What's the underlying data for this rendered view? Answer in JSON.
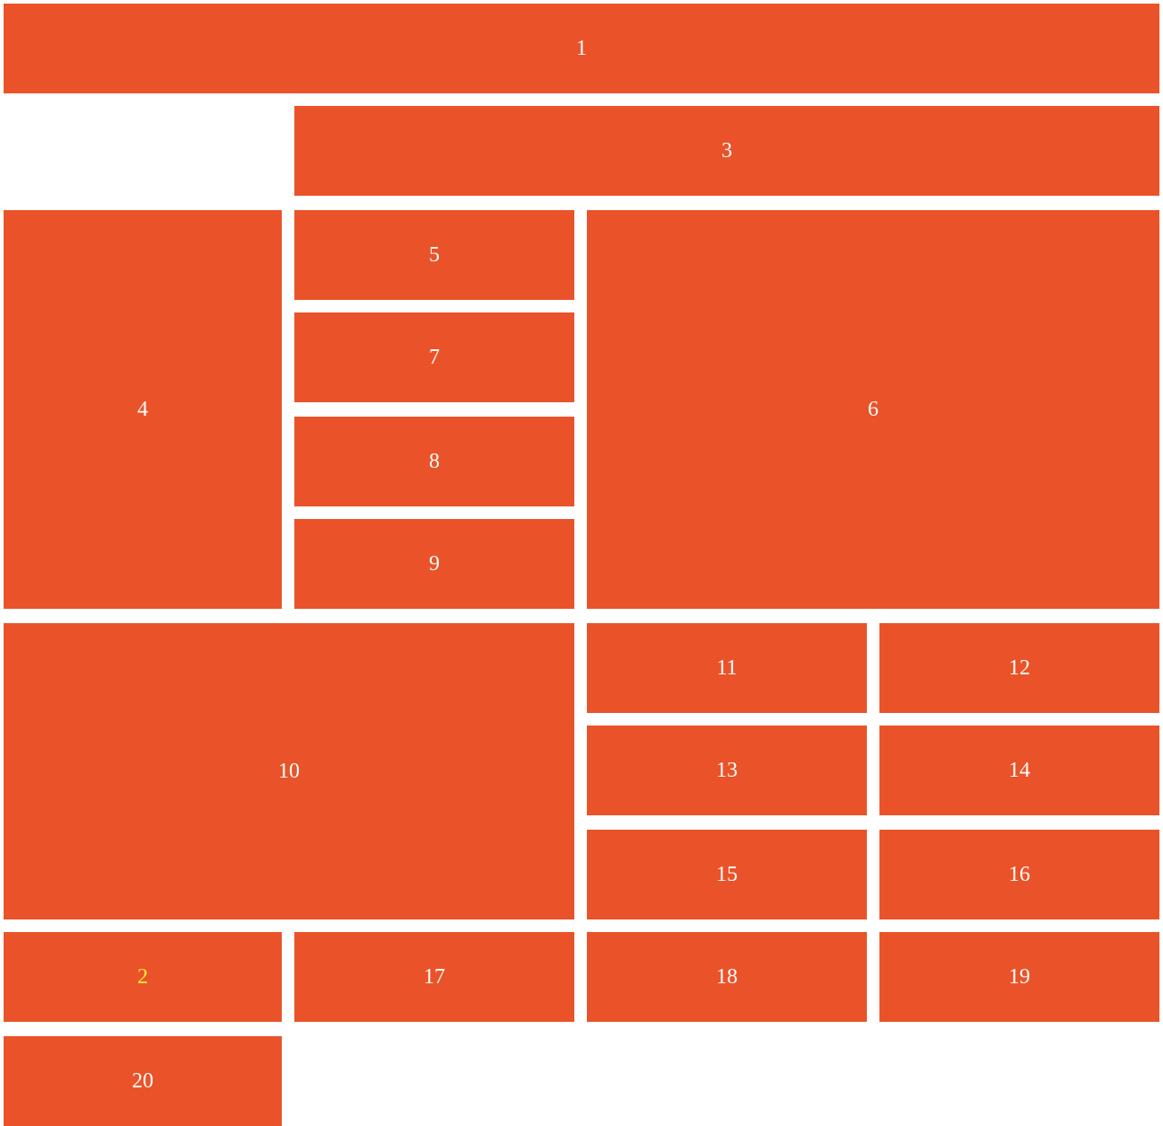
{
  "theme": {
    "tile_color": "#ea5329",
    "text_color": "#ffffff",
    "highlight_text_color": "#ffeb3b",
    "background": "#ffffff"
  },
  "tiles": {
    "t1": "1",
    "t2": "2",
    "t3": "3",
    "t4": "4",
    "t5": "5",
    "t6": "6",
    "t7": "7",
    "t8": "8",
    "t9": "9",
    "t10": "10",
    "t11": "11",
    "t12": "12",
    "t13": "13",
    "t14": "14",
    "t15": "15",
    "t16": "16",
    "t17": "17",
    "t18": "18",
    "t19": "19",
    "t20": "20"
  }
}
